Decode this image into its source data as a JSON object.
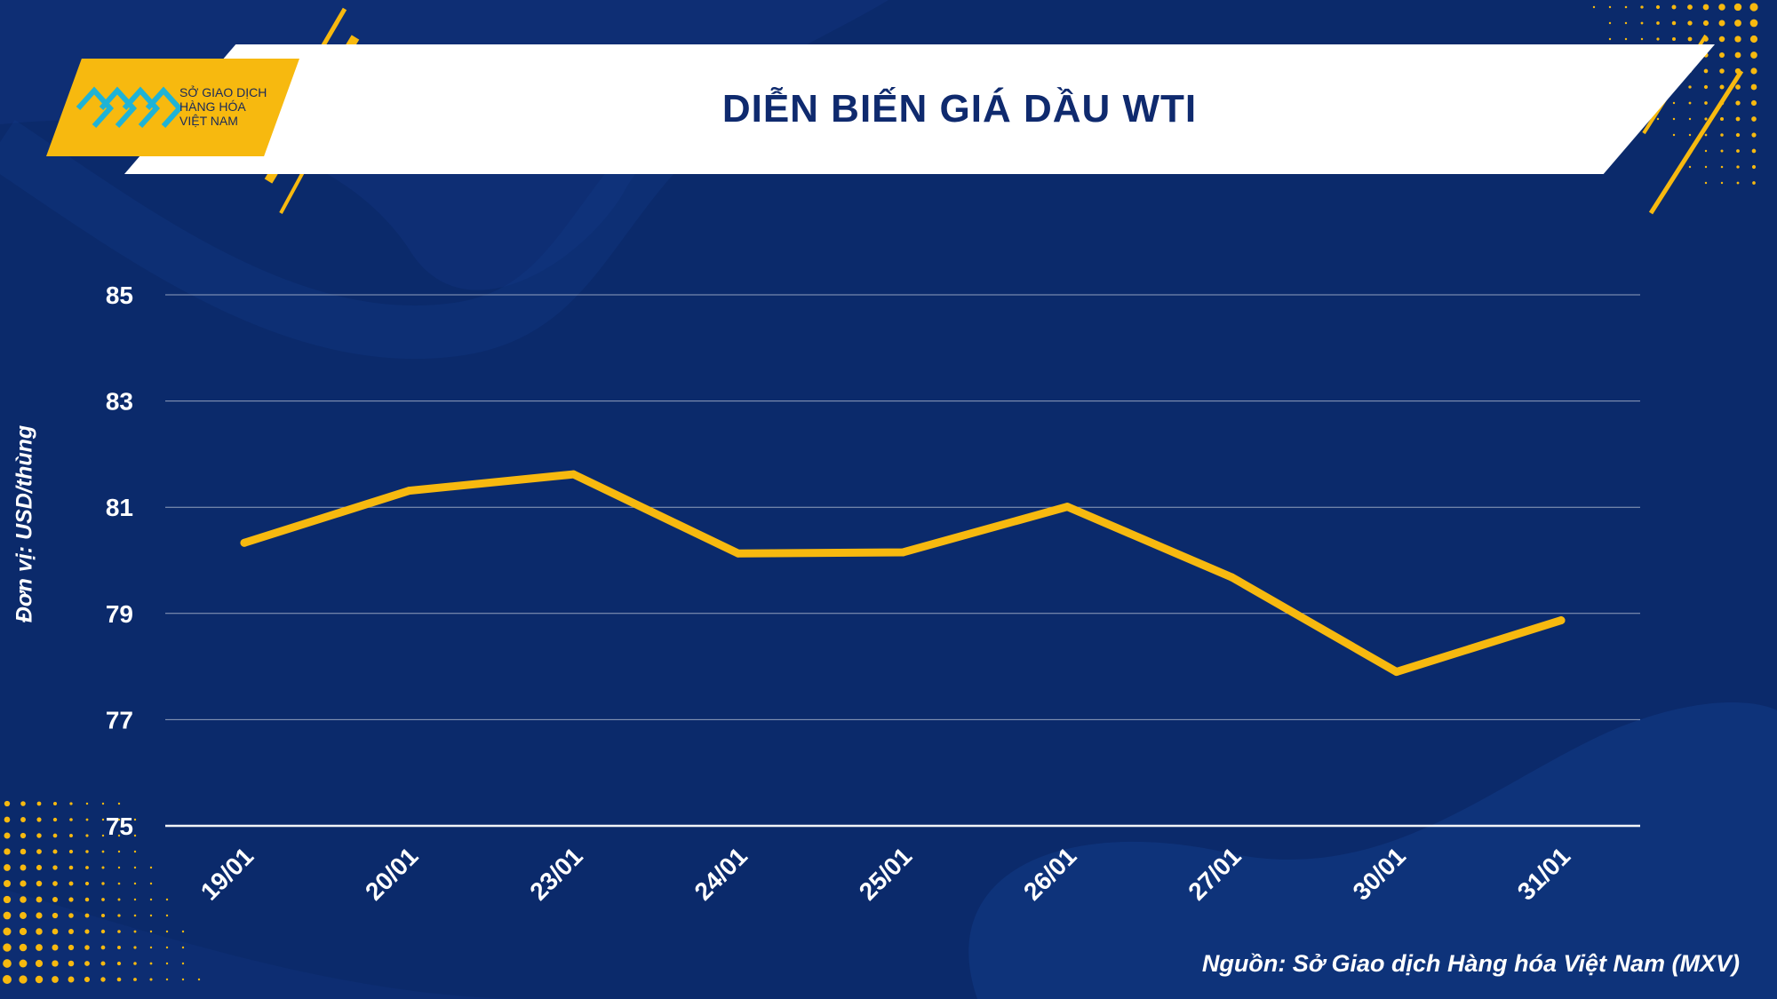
{
  "header": {
    "title": "DIỄN BIẾN GIÁ DẦU WTI",
    "logo_lines": [
      "SỞ GIAO DỊCH",
      "HÀNG HÓA",
      "VIỆT NAM"
    ]
  },
  "footer": {
    "source": "Nguồn: Sở Giao dịch Hàng hóa Việt Nam (MXV)"
  },
  "colors": {
    "background": "#0b2a6b",
    "accent": "#f7b90f",
    "line": "#f7b90f",
    "title": "#0f2a6e",
    "text": "#ffffff"
  },
  "chart_data": {
    "type": "line",
    "title": "DIỄN BIẾN GIÁ DẦU WTI",
    "xlabel": "",
    "ylabel": "Đơn vị: USD/thùng",
    "categories": [
      "19/01",
      "20/01",
      "23/01",
      "24/01",
      "25/01",
      "26/01",
      "27/01",
      "30/01",
      "31/01"
    ],
    "values": [
      80.33,
      81.31,
      81.62,
      80.13,
      80.15,
      81.01,
      79.68,
      77.9,
      78.87
    ],
    "ylim": [
      75,
      85
    ],
    "yticks": [
      75,
      77,
      79,
      81,
      83,
      85
    ],
    "grid": true,
    "legend": "none"
  }
}
